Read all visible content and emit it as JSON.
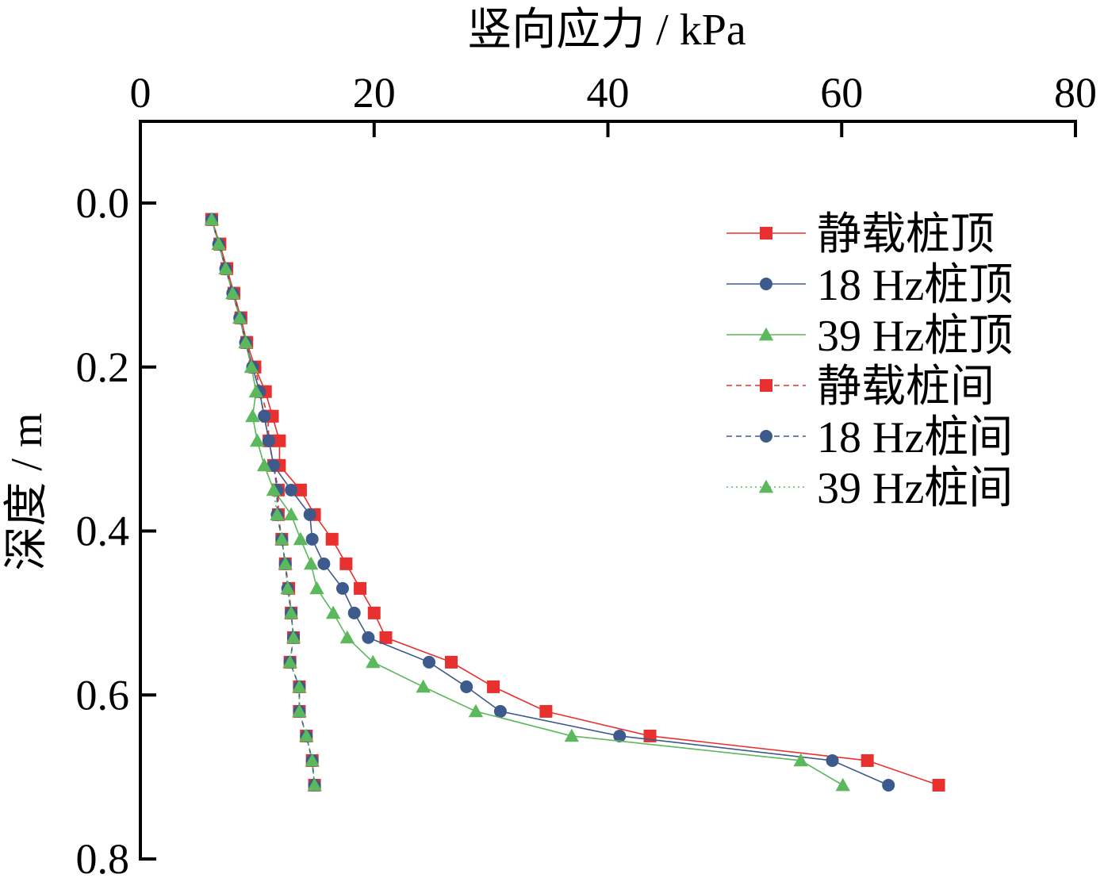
{
  "chart_data": {
    "type": "line",
    "xlabel": "竖向应力 / kPa",
    "ylabel": "深度 / m",
    "xlim": [
      0,
      80
    ],
    "ylim": [
      0.8,
      0.0
    ],
    "x_axis_position": "top",
    "y_axis_inverted": true,
    "xticks": [
      0,
      20,
      40,
      60,
      80
    ],
    "xtick_labels": [
      "0",
      "20",
      "40",
      "60",
      "80"
    ],
    "yticks": [
      0.0,
      0.2,
      0.4,
      0.6,
      0.8
    ],
    "ytick_labels": [
      "0.0",
      "0.2",
      "0.4",
      "0.6",
      "0.8"
    ],
    "grid": false,
    "legend_position": "top-right",
    "series": [
      {
        "name": "静载桩顶",
        "color": "#e8312f",
        "marker": "square",
        "line": "solid",
        "points": [
          [
            6.1,
            0.02
          ],
          [
            6.8,
            0.05
          ],
          [
            7.4,
            0.08
          ],
          [
            8.0,
            0.11
          ],
          [
            8.6,
            0.14
          ],
          [
            9.1,
            0.17
          ],
          [
            9.8,
            0.2
          ],
          [
            10.7,
            0.23
          ],
          [
            11.3,
            0.26
          ],
          [
            11.9,
            0.29
          ],
          [
            11.9,
            0.32
          ],
          [
            13.7,
            0.35
          ],
          [
            14.9,
            0.38
          ],
          [
            16.4,
            0.41
          ],
          [
            17.6,
            0.44
          ],
          [
            18.8,
            0.47
          ],
          [
            20.0,
            0.5
          ],
          [
            21.0,
            0.53
          ],
          [
            26.6,
            0.56
          ],
          [
            30.2,
            0.59
          ],
          [
            34.7,
            0.62
          ],
          [
            43.6,
            0.65
          ],
          [
            62.2,
            0.68
          ],
          [
            68.3,
            0.71
          ]
        ]
      },
      {
        "name": "18 Hz桩顶",
        "color": "#3d5a8c",
        "marker": "circle",
        "line": "solid",
        "points": [
          [
            6.1,
            0.02
          ],
          [
            6.7,
            0.05
          ],
          [
            7.3,
            0.08
          ],
          [
            7.9,
            0.11
          ],
          [
            8.5,
            0.14
          ],
          [
            9.0,
            0.17
          ],
          [
            9.6,
            0.2
          ],
          [
            10.2,
            0.23
          ],
          [
            10.6,
            0.26
          ],
          [
            11.0,
            0.29
          ],
          [
            11.4,
            0.32
          ],
          [
            12.9,
            0.35
          ],
          [
            14.5,
            0.38
          ],
          [
            14.7,
            0.41
          ],
          [
            15.7,
            0.44
          ],
          [
            17.3,
            0.47
          ],
          [
            18.3,
            0.5
          ],
          [
            19.5,
            0.53
          ],
          [
            24.7,
            0.56
          ],
          [
            27.9,
            0.59
          ],
          [
            30.8,
            0.62
          ],
          [
            41.0,
            0.65
          ],
          [
            59.2,
            0.68
          ],
          [
            64.0,
            0.71
          ]
        ]
      },
      {
        "name": "39 Hz桩顶",
        "color": "#5cb85c",
        "marker": "triangle",
        "line": "solid",
        "points": [
          [
            6.1,
            0.02
          ],
          [
            6.7,
            0.05
          ],
          [
            7.3,
            0.08
          ],
          [
            7.9,
            0.11
          ],
          [
            8.5,
            0.14
          ],
          [
            9.0,
            0.17
          ],
          [
            9.5,
            0.2
          ],
          [
            9.9,
            0.23
          ],
          [
            9.6,
            0.26
          ],
          [
            10.0,
            0.29
          ],
          [
            10.6,
            0.32
          ],
          [
            11.4,
            0.35
          ],
          [
            12.9,
            0.38
          ],
          [
            13.7,
            0.41
          ],
          [
            14.6,
            0.44
          ],
          [
            15.1,
            0.47
          ],
          [
            16.5,
            0.5
          ],
          [
            17.7,
            0.53
          ],
          [
            19.9,
            0.56
          ],
          [
            24.2,
            0.59
          ],
          [
            28.7,
            0.62
          ],
          [
            36.9,
            0.65
          ],
          [
            56.5,
            0.68
          ],
          [
            60.1,
            0.71
          ]
        ]
      },
      {
        "name": "静载桩间",
        "color": "#e8312f",
        "marker": "square",
        "line": "dashed",
        "points": [
          [
            6.1,
            0.02
          ],
          [
            6.8,
            0.05
          ],
          [
            7.4,
            0.08
          ],
          [
            8.0,
            0.11
          ],
          [
            8.6,
            0.14
          ],
          [
            9.1,
            0.17
          ],
          [
            9.8,
            0.2
          ],
          [
            10.3,
            0.23
          ],
          [
            10.9,
            0.26
          ],
          [
            11.0,
            0.29
          ],
          [
            11.4,
            0.32
          ],
          [
            11.8,
            0.35
          ],
          [
            11.8,
            0.38
          ],
          [
            12.1,
            0.41
          ],
          [
            12.4,
            0.44
          ],
          [
            12.7,
            0.47
          ],
          [
            12.9,
            0.5
          ],
          [
            13.1,
            0.53
          ],
          [
            12.8,
            0.56
          ],
          [
            13.6,
            0.59
          ],
          [
            13.6,
            0.62
          ],
          [
            14.2,
            0.65
          ],
          [
            14.7,
            0.68
          ],
          [
            14.9,
            0.71
          ]
        ]
      },
      {
        "name": "18 Hz桩间",
        "color": "#3d5a8c",
        "marker": "circle",
        "line": "dashed",
        "points": [
          [
            6.1,
            0.02
          ],
          [
            6.7,
            0.05
          ],
          [
            7.3,
            0.08
          ],
          [
            7.9,
            0.11
          ],
          [
            8.5,
            0.14
          ],
          [
            9.0,
            0.17
          ],
          [
            9.6,
            0.2
          ],
          [
            10.2,
            0.23
          ],
          [
            10.6,
            0.26
          ],
          [
            11.0,
            0.29
          ],
          [
            11.4,
            0.32
          ],
          [
            11.7,
            0.35
          ],
          [
            11.7,
            0.38
          ],
          [
            12.1,
            0.41
          ],
          [
            12.4,
            0.44
          ],
          [
            12.6,
            0.47
          ],
          [
            12.9,
            0.5
          ],
          [
            13.1,
            0.53
          ],
          [
            12.8,
            0.56
          ],
          [
            13.6,
            0.59
          ],
          [
            13.6,
            0.62
          ],
          [
            14.2,
            0.65
          ],
          [
            14.7,
            0.68
          ],
          [
            14.9,
            0.71
          ]
        ]
      },
      {
        "name": "39 Hz桩间",
        "color": "#5cb85c",
        "marker": "triangle",
        "line": "dotted",
        "points": [
          [
            6.1,
            0.02
          ],
          [
            6.7,
            0.05
          ],
          [
            7.3,
            0.08
          ],
          [
            7.9,
            0.11
          ],
          [
            8.5,
            0.14
          ],
          [
            9.0,
            0.17
          ],
          [
            9.5,
            0.2
          ],
          [
            9.9,
            0.23
          ],
          [
            9.6,
            0.26
          ],
          [
            10.0,
            0.29
          ],
          [
            10.6,
            0.32
          ],
          [
            11.4,
            0.35
          ],
          [
            11.7,
            0.38
          ],
          [
            12.1,
            0.41
          ],
          [
            12.4,
            0.44
          ],
          [
            12.6,
            0.47
          ],
          [
            12.9,
            0.5
          ],
          [
            13.1,
            0.53
          ],
          [
            12.8,
            0.56
          ],
          [
            13.6,
            0.59
          ],
          [
            13.6,
            0.62
          ],
          [
            14.2,
            0.65
          ],
          [
            14.7,
            0.68
          ],
          [
            14.9,
            0.71
          ]
        ]
      }
    ]
  }
}
